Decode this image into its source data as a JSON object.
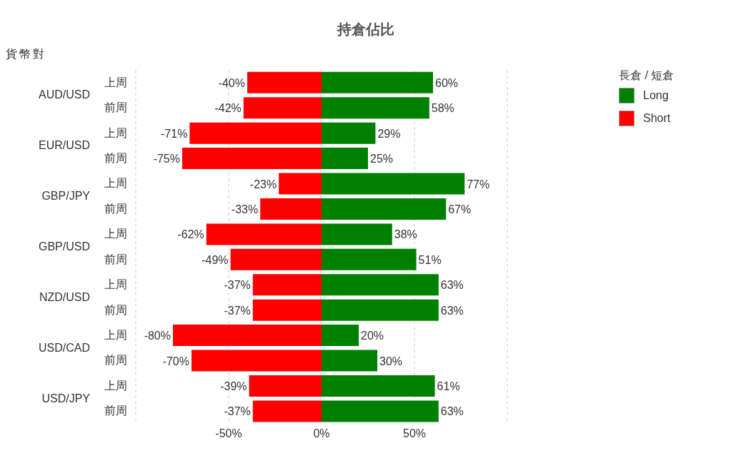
{
  "chart_data": {
    "type": "bar",
    "orientation": "horizontal",
    "stacked": true,
    "title": "持倉佔比",
    "legend_title": "長倉 / 短倉",
    "categories": [
      "上周",
      "前周",
      "上周",
      "前周",
      "上周",
      "前周",
      "上周",
      "前周",
      "上周",
      "前周",
      "上周",
      "前周",
      "上周",
      "前周"
    ],
    "annotations": [
      "貨幣對",
      "AUD/USD",
      "EUR/USD",
      "GBP/JPY",
      "GBP/USD",
      "NZD/USD",
      "USD/CAD",
      "USD/JPY"
    ],
    "series": [
      {
        "name": "Long",
        "color": "#008000",
        "values": [
          60,
          58,
          29,
          25,
          77,
          67,
          38,
          51,
          63,
          63,
          20,
          30,
          61,
          63
        ],
        "value_labels": [
          "60%",
          "58%",
          "29%",
          "25%",
          "77%",
          "67%",
          "38%",
          "51%",
          "63%",
          "63%",
          "20%",
          "30%",
          "61%",
          "63%"
        ]
      },
      {
        "name": "Short",
        "color": "#ff0000",
        "values": [
          -40,
          -42,
          -71,
          -75,
          -23,
          -33,
          -62,
          -49,
          -37,
          -37,
          -80,
          -70,
          -39,
          -37
        ],
        "value_labels": [
          "-40%",
          "-42%",
          "-71%",
          "-75%",
          "-23%",
          "-33%",
          "-62%",
          "-49%",
          "-37%",
          "-37%",
          "-80%",
          "-70%",
          "-39%",
          "-37%"
        ]
      }
    ],
    "xlim": [
      -100,
      100
    ],
    "xticks": [
      {
        "value": -50,
        "label": "-50%"
      },
      {
        "value": 0,
        "label": "0%"
      },
      {
        "value": 50,
        "label": "50%"
      }
    ],
    "grid": "x",
    "legend": "top right"
  }
}
